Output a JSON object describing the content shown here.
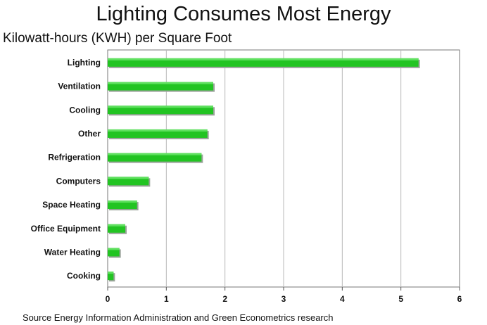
{
  "chart_data": {
    "type": "bar",
    "orientation": "horizontal",
    "title": "Lighting Consumes Most Energy",
    "subtitle": "Kilowatt-hours (KWH) per Square Foot",
    "categories": [
      "Lighting",
      "Ventilation",
      "Cooling",
      "Other",
      "Refrigeration",
      "Computers",
      "Space Heating",
      "Office Equipment",
      "Water Heating",
      "Cooking"
    ],
    "values": [
      5.3,
      1.8,
      1.8,
      1.7,
      1.6,
      0.7,
      0.5,
      0.3,
      0.2,
      0.1
    ],
    "xlim": [
      0,
      6
    ],
    "xticks": [
      "0",
      "1",
      "2",
      "3",
      "4",
      "5",
      "6"
    ],
    "grid": true,
    "bar_color": "#22c422",
    "source": "Source  Energy Information Administration and Green Econometrics research"
  }
}
